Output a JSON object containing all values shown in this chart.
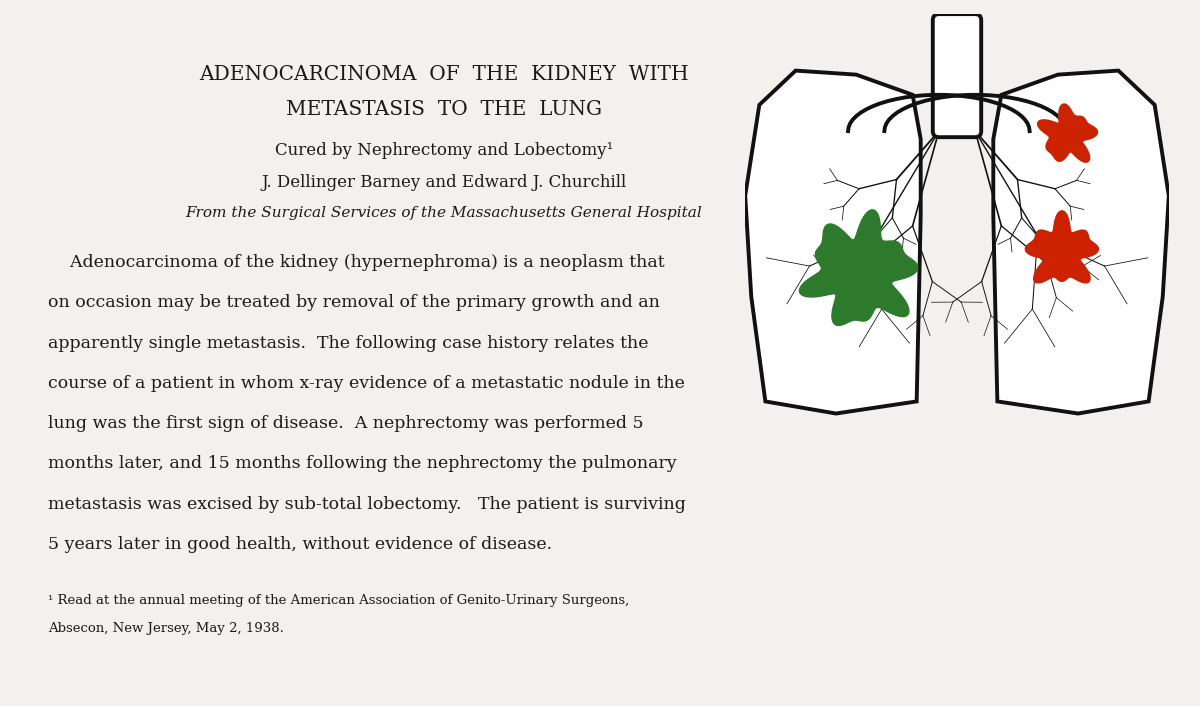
{
  "background_color": "#f2f1ed",
  "title_line1": "ADENOCARCINOMA  OF  THE  KIDNEY  WITH",
  "title_line2": "METASTASIS  TO  THE  LUNG",
  "subtitle": "Cured by Nephrectomy and Lobectomy¹",
  "authors": "J. Dellinger Barney and Edward J. Churchill",
  "affiliation": "From the Surgical Services of the Massachusetts General Hospital",
  "body_lines": [
    "    Adenocarcinoma of the kidney (hypernephroma) is a neoplasm that",
    "on occasion may be treated by removal of the primary growth and an",
    "apparently single metastasis.  The following case history relates the",
    "course of a patient in whom x-ray evidence of a metastatic nodule in the",
    "lung was the first sign of disease.  A nephrectomy was performed 5",
    "months later, and 15 months following the nephrectomy the pulmonary",
    "metastasis was excised by sub-total lobectomy.   The patient is surviving",
    "5 years later in good health, without evidence of disease."
  ],
  "footnote_line1": "¹ Read at the annual meeting of the American Association of Genito-Urinary Surgeons,",
  "footnote_line2": "Absecon, New Jersey, May 2, 1938.",
  "text_color": "#1a1a1a",
  "title_fontsize": 14.5,
  "subtitle_fontsize": 12,
  "authors_fontsize": 12,
  "affiliation_fontsize": 11,
  "body_fontsize": 12.5,
  "footnote_fontsize": 9.5,
  "green_color": "#2d7a2d",
  "red_color": "#cc2200",
  "lung_ec": "#111111"
}
